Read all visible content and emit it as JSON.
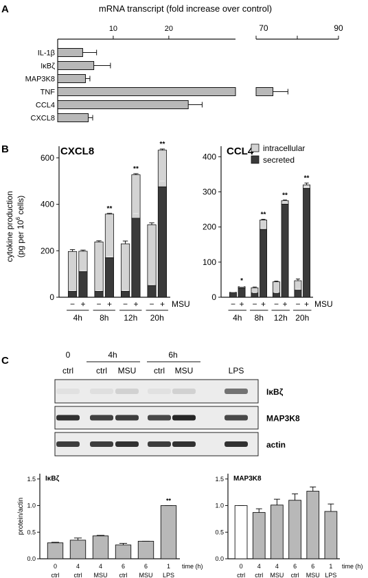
{
  "figure": {
    "panel_a_label": "A",
    "panel_b_label": "B",
    "panel_c_label": "C"
  },
  "colors": {
    "intracellular": "#d3d3d3",
    "secreted": "#3a3a3a",
    "bar_gray": "#b8b8b8",
    "bar_white": "#ffffff",
    "axis": "#111111"
  },
  "blot": {
    "header_0": "0",
    "header_4h": "4h",
    "header_6h": "6h",
    "lanes": [
      "ctrl",
      "ctrl",
      "MSU",
      "ctrl",
      "MSU",
      "LPS"
    ],
    "bands": [
      "IκBζ",
      "MAP3K8",
      "actin"
    ]
  },
  "chart_data": [
    {
      "id": "A",
      "type": "bar",
      "orientation": "horizontal",
      "title": "mRNA transcript (fold increase over control)",
      "categories": [
        "IL-1β",
        "IκBζ",
        "MAP3K8",
        "TNF",
        "CCL4",
        "CXCL8"
      ],
      "values": [
        4.5,
        6.5,
        5.0,
        72.5,
        23.5,
        5.5
      ],
      "errors": [
        2.5,
        3.0,
        0.8,
        4.0,
        2.5,
        0.8
      ],
      "axis_broken": true,
      "xticks_left": [
        10,
        20
      ],
      "xticks_right": [
        70,
        90
      ],
      "xlim_left": [
        0,
        32
      ],
      "xlim_right": [
        68,
        90
      ]
    },
    {
      "id": "B1",
      "type": "bar",
      "stacked": true,
      "title": "CXCL8",
      "ylabel": "cytokine production (pg per 10^6 cells)",
      "ylabel_line1": "cytokine production",
      "ylabel_line2a": "(pg per 10",
      "ylabel_sup": "6",
      "ylabel_line2b": " cells)",
      "yticks": [
        0,
        200,
        400,
        600
      ],
      "ylim": [
        0,
        650
      ],
      "categories": [
        "4h −",
        "4h +",
        "8h −",
        "8h +",
        "12h −",
        "12h +",
        "20h −",
        "20h +"
      ],
      "signs": [
        "−",
        "+",
        "−",
        "+",
        "−",
        "+",
        "−",
        "+"
      ],
      "groups": [
        "4h",
        "8h",
        "12h",
        "20h"
      ],
      "msu_label": "MSU",
      "series": [
        {
          "name": "secreted",
          "values": [
            25,
            110,
            25,
            170,
            25,
            340,
            50,
            475
          ],
          "errors": [
            3,
            5,
            3,
            5,
            4,
            20,
            5,
            25
          ]
        },
        {
          "name": "intracellular",
          "values": [
            172,
            88,
            213,
            188,
            205,
            187,
            262,
            158
          ],
          "errors": [
            8,
            5,
            5,
            3,
            12,
            5,
            8,
            5
          ]
        }
      ],
      "significance": [
        "",
        "",
        "",
        "**",
        "",
        "**",
        "",
        "**"
      ]
    },
    {
      "id": "B2",
      "type": "bar",
      "stacked": true,
      "title": "CCL4",
      "yticks": [
        0,
        100,
        200,
        300,
        400
      ],
      "ylim": [
        0,
        430
      ],
      "categories": [
        "4h −",
        "4h +",
        "8h −",
        "8h +",
        "12h −",
        "12h +",
        "20h −",
        "20h +"
      ],
      "signs": [
        "−",
        "+",
        "−",
        "+",
        "−",
        "+",
        "−",
        "+"
      ],
      "groups": [
        "4h",
        "8h",
        "12h",
        "20h"
      ],
      "msu_label": "MSU",
      "legend": [
        "intracellular",
        "secreted"
      ],
      "series": [
        {
          "name": "secreted",
          "values": [
            14,
            27,
            12,
            193,
            12,
            265,
            20,
            310
          ],
          "errors": [
            1,
            3,
            1,
            3,
            1,
            8,
            3,
            5
          ]
        },
        {
          "name": "intracellular",
          "values": [
            0,
            3,
            15,
            27,
            32,
            10,
            27,
            10
          ],
          "errors": [
            0,
            0,
            2,
            2,
            2,
            2,
            5,
            5
          ]
        }
      ],
      "significance": [
        "",
        "*",
        "",
        "**",
        "",
        "**",
        "",
        "**"
      ]
    },
    {
      "id": "C1",
      "type": "bar",
      "title": "IκBζ",
      "ylabel": "protein/actin",
      "yticks": [
        0.0,
        0.5,
        1.0,
        1.5
      ],
      "ylim": [
        0,
        1.6
      ],
      "times": [
        "0",
        "4",
        "4",
        "6",
        "6",
        "1"
      ],
      "treatments": [
        "ctrl",
        "ctrl",
        "MSU",
        "ctrl",
        "MSU",
        "LPS"
      ],
      "values": [
        0.3,
        0.35,
        0.43,
        0.26,
        0.33,
        1.0
      ],
      "errors": [
        0.01,
        0.04,
        0.01,
        0.03,
        0.0,
        0.0
      ],
      "significance": [
        "",
        "",
        "",
        "",
        "",
        "**"
      ],
      "xlabel": "time (h)"
    },
    {
      "id": "C2",
      "type": "bar",
      "title": "MAP3K8",
      "yticks": [
        0.0,
        0.5,
        1.0,
        1.5
      ],
      "ylim": [
        0,
        1.6
      ],
      "times": [
        "0",
        "4",
        "4",
        "6",
        "6",
        "1"
      ],
      "treatments": [
        "ctrl",
        "ctrl",
        "MSU",
        "ctrl",
        "MSU",
        "LPS"
      ],
      "values": [
        1.0,
        0.87,
        1.01,
        1.1,
        1.27,
        0.89
      ],
      "errors": [
        0.0,
        0.07,
        0.11,
        0.12,
        0.08,
        0.14
      ],
      "xlabel": "time (h)"
    }
  ]
}
